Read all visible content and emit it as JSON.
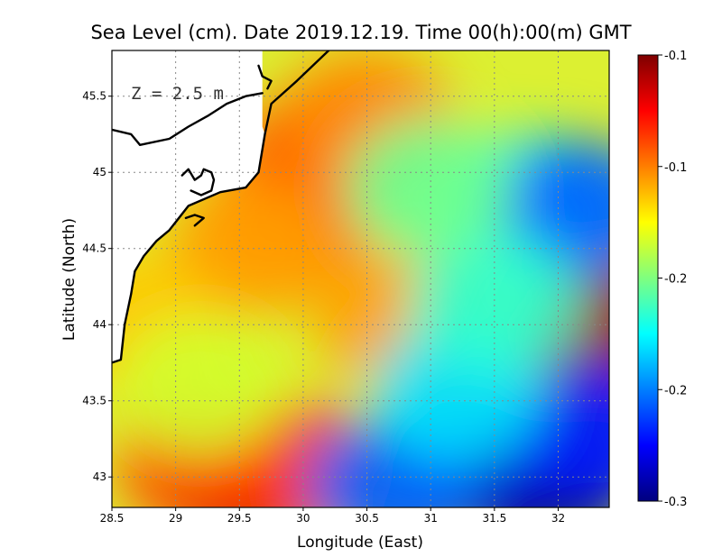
{
  "title": "Sea Level (cm). Date 2019.12.19. Time 00(h):00(m) GMT",
  "depth_label": "Z = 2.5 m",
  "chart_data": {
    "type": "heatmap",
    "xlabel": "Longitude (East)",
    "ylabel": "Latitude (North)",
    "xlim": [
      28.5,
      32.4
    ],
    "ylim": [
      42.8,
      45.8
    ],
    "x_ticks": [
      {
        "value": 28.5,
        "label": "28.5"
      },
      {
        "value": 29,
        "label": "29"
      },
      {
        "value": 29.5,
        "label": "29.5"
      },
      {
        "value": 30,
        "label": "30"
      },
      {
        "value": 30.5,
        "label": "30.5"
      },
      {
        "value": 31,
        "label": "31"
      },
      {
        "value": 31.5,
        "label": "31.5"
      },
      {
        "value": 32,
        "label": "32"
      }
    ],
    "y_ticks": [
      {
        "value": 43,
        "label": "43"
      },
      {
        "value": 43.5,
        "label": "43.5"
      },
      {
        "value": 44,
        "label": "44"
      },
      {
        "value": 44.5,
        "label": "44.5"
      },
      {
        "value": 45,
        "label": "45"
      },
      {
        "value": 45.5,
        "label": "45.5"
      }
    ],
    "grid": true,
    "colorbar": {
      "colors": [
        "#00007f",
        "#0000ff",
        "#007fff",
        "#00ffff",
        "#7fff7f",
        "#ffff00",
        "#ff7f00",
        "#ff0000",
        "#7f0000"
      ],
      "ticks": [
        {
          "frac": 0.0,
          "label": "-0.3"
        },
        {
          "frac": 0.25,
          "label": "-0.2"
        },
        {
          "frac": 0.5,
          "label": "-0.2"
        },
        {
          "frac": 0.75,
          "label": "-0.1"
        },
        {
          "frac": 1.0,
          "label": "-0.1"
        }
      ]
    },
    "field_features": [
      {
        "lon": 29.55,
        "lat": 42.95,
        "level": 1.0
      },
      {
        "lon": 29.2,
        "lat": 43.1,
        "level": 0.8
      },
      {
        "lon": 29.9,
        "lat": 43.05,
        "level": 0.82
      },
      {
        "lon": 30.15,
        "lat": 45.1,
        "level": 0.8
      },
      {
        "lon": 29.9,
        "lat": 44.75,
        "level": 0.78
      },
      {
        "lon": 29.6,
        "lat": 44.5,
        "level": 0.72
      },
      {
        "lon": 30.5,
        "lat": 45.35,
        "level": 0.74
      },
      {
        "lon": 30.75,
        "lat": 44.05,
        "level": 0.72
      },
      {
        "lon": 32.4,
        "lat": 43.95,
        "level": 0.98
      },
      {
        "lon": 28.7,
        "lat": 44.0,
        "level": 0.68
      },
      {
        "lon": 31.9,
        "lat": 42.95,
        "level": 0.0
      },
      {
        "lon": 31.3,
        "lat": 43.1,
        "level": 0.08
      },
      {
        "lon": 32.3,
        "lat": 43.3,
        "level": 0.15
      },
      {
        "lon": 30.7,
        "lat": 42.95,
        "level": 0.22
      },
      {
        "lon": 31.2,
        "lat": 43.55,
        "level": 0.35
      },
      {
        "lon": 31.8,
        "lat": 44.8,
        "level": 0.38
      },
      {
        "lon": 32.15,
        "lat": 44.75,
        "level": 0.22
      },
      {
        "lon": 31.5,
        "lat": 44.15,
        "level": 0.42
      },
      {
        "lon": 31.0,
        "lat": 44.9,
        "level": 0.48
      },
      {
        "lon": 29.2,
        "lat": 43.6,
        "level": 0.58
      }
    ],
    "coastlines": [
      [
        [
          28.5,
          43.75
        ],
        [
          28.57,
          43.77
        ],
        [
          28.6,
          44.0
        ],
        [
          28.65,
          44.2
        ],
        [
          28.68,
          44.35
        ],
        [
          28.75,
          44.45
        ],
        [
          28.85,
          44.55
        ],
        [
          28.95,
          44.62
        ],
        [
          29.1,
          44.78
        ],
        [
          29.35,
          44.87
        ],
        [
          29.55,
          44.9
        ],
        [
          29.65,
          45.0
        ],
        [
          29.7,
          45.25
        ],
        [
          29.75,
          45.45
        ],
        [
          29.95,
          45.6
        ],
        [
          30.2,
          45.8
        ]
      ],
      [
        [
          28.5,
          45.28
        ],
        [
          28.65,
          45.25
        ],
        [
          28.72,
          45.18
        ],
        [
          28.95,
          45.22
        ],
        [
          29.1,
          45.3
        ],
        [
          29.25,
          45.37
        ],
        [
          29.4,
          45.45
        ],
        [
          29.55,
          45.5
        ],
        [
          29.68,
          45.52
        ]
      ],
      [
        [
          29.05,
          44.98
        ],
        [
          29.1,
          45.02
        ],
        [
          29.15,
          44.95
        ],
        [
          29.2,
          44.98
        ],
        [
          29.22,
          45.02
        ],
        [
          29.28,
          45.0
        ],
        [
          29.3,
          44.95
        ],
        [
          29.28,
          44.88
        ],
        [
          29.2,
          44.85
        ],
        [
          29.12,
          44.88
        ]
      ],
      [
        [
          29.08,
          44.7
        ],
        [
          29.15,
          44.72
        ],
        [
          29.22,
          44.7
        ],
        [
          29.15,
          44.65
        ]
      ],
      [
        [
          29.65,
          45.7
        ],
        [
          29.68,
          45.63
        ],
        [
          29.75,
          45.6
        ],
        [
          29.72,
          45.55
        ]
      ]
    ],
    "land_masks": [
      [
        [
          28.5,
          45.8
        ],
        [
          29.68,
          45.8
        ],
        [
          29.68,
          45.52
        ],
        [
          29.55,
          45.5
        ],
        [
          29.4,
          45.45
        ],
        [
          29.25,
          45.37
        ],
        [
          29.1,
          45.3
        ],
        [
          28.95,
          45.22
        ],
        [
          28.72,
          45.18
        ],
        [
          28.65,
          45.25
        ],
        [
          28.5,
          45.28
        ]
      ],
      [
        [
          28.5,
          45.28
        ],
        [
          28.65,
          45.25
        ],
        [
          28.72,
          45.18
        ],
        [
          28.95,
          45.22
        ],
        [
          29.1,
          45.3
        ],
        [
          29.25,
          45.37
        ],
        [
          29.4,
          45.45
        ],
        [
          29.55,
          45.5
        ],
        [
          29.68,
          45.52
        ],
        [
          29.68,
          45.3
        ],
        [
          29.7,
          45.25
        ],
        [
          29.65,
          45.0
        ],
        [
          29.55,
          44.9
        ],
        [
          29.35,
          44.87
        ],
        [
          29.1,
          44.78
        ],
        [
          28.95,
          44.62
        ],
        [
          28.85,
          44.55
        ],
        [
          28.75,
          44.45
        ],
        [
          28.68,
          44.35
        ],
        [
          28.65,
          44.2
        ],
        [
          28.6,
          44.0
        ],
        [
          28.57,
          43.77
        ],
        [
          28.5,
          43.75
        ]
      ]
    ]
  }
}
